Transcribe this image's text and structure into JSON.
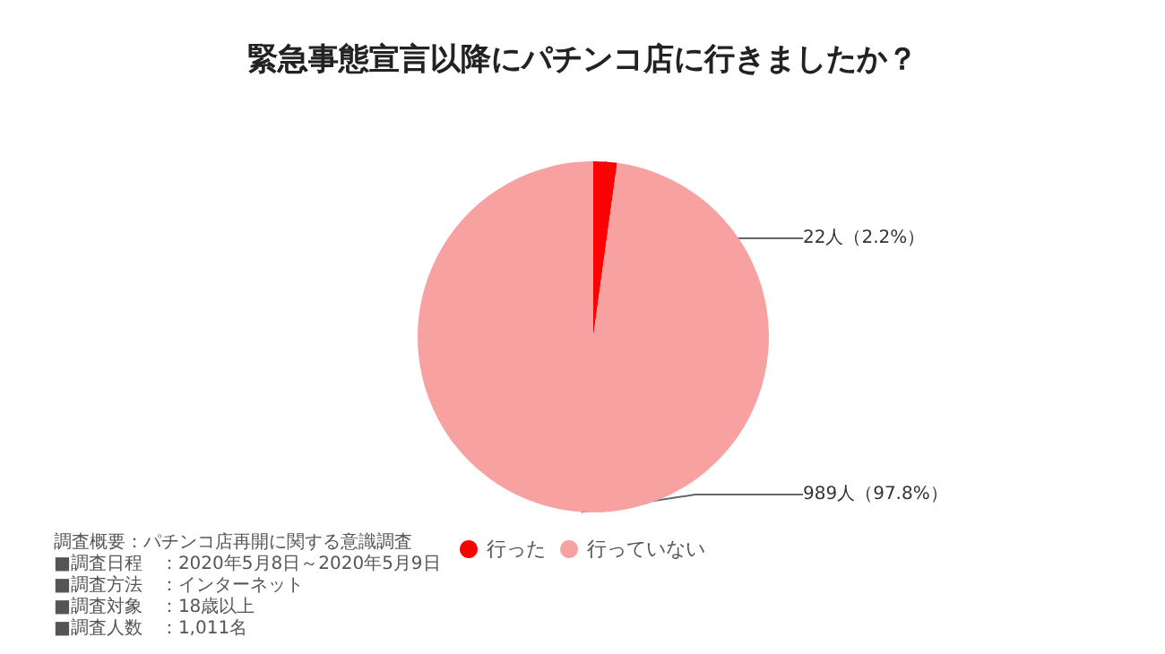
{
  "chart_data": {
    "type": "pie",
    "title": "緊急事態宣言以降にパチンコ店に行きましたか？",
    "categories": [
      "行った",
      "行っていない"
    ],
    "values": [
      22,
      989
    ],
    "value_labels": [
      "22人（2.2%）",
      "989人（97.8%）"
    ],
    "colors": [
      "#ff0000",
      "#f7a1a1"
    ],
    "legend": "bottom",
    "annotations": [
      "調査概要：パチンコ店再開に関する意識調査",
      "■調査日程　：2020年5月8日～2020年5月9日",
      "■調査方法　：インターネット",
      "■調査対象　：18歳以上",
      "■調査人数　：1,011名"
    ]
  }
}
